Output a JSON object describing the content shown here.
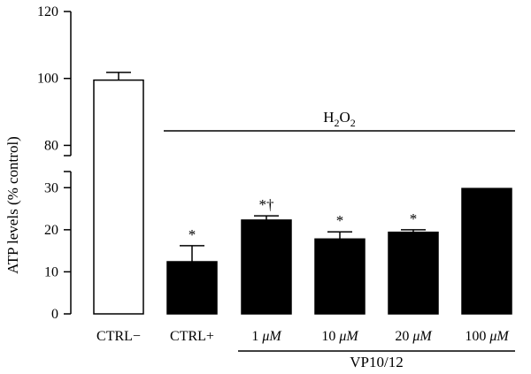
{
  "chart_data": {
    "type": "bar",
    "ylabel": "ATP levels (% control)",
    "axis": {
      "broken": true,
      "lower_ticks": [
        0,
        10,
        20,
        30
      ],
      "upper_ticks": [
        80,
        100,
        120
      ],
      "lower_range": [
        0,
        33
      ],
      "upper_range": [
        78,
        120
      ]
    },
    "categories": [
      {
        "label": "CTRL−",
        "number": "",
        "unit": "",
        "value": 99.5,
        "error": 2.3,
        "fill": "#ffffff",
        "annotation": ""
      },
      {
        "label": "CTRL+",
        "number": "",
        "unit": "",
        "value": 12.4,
        "error": 3.8,
        "fill": "#000000",
        "annotation": "*"
      },
      {
        "label": "",
        "number": "1",
        "unit": "μM",
        "value": 22.3,
        "error": 1.0,
        "fill": "#000000",
        "annotation": "*†"
      },
      {
        "label": "",
        "number": "10",
        "unit": "μM",
        "value": 17.8,
        "error": 1.7,
        "fill": "#000000",
        "annotation": "*"
      },
      {
        "label": "",
        "number": "20",
        "unit": "μM",
        "value": 19.4,
        "error": 0.6,
        "fill": "#000000",
        "annotation": "*"
      },
      {
        "label": "",
        "number": "100",
        "unit": "μM",
        "value": 29.8,
        "error": 4.3,
        "fill": "#000000",
        "annotation": "*†"
      }
    ],
    "brackets": [
      {
        "label": "H",
        "sub": "2",
        "mid": "O",
        "sub2": "2",
        "from": 1,
        "to": 5,
        "position": "above"
      },
      {
        "label": "VP10/12",
        "from": 2,
        "to": 5,
        "position": "below"
      }
    ]
  }
}
